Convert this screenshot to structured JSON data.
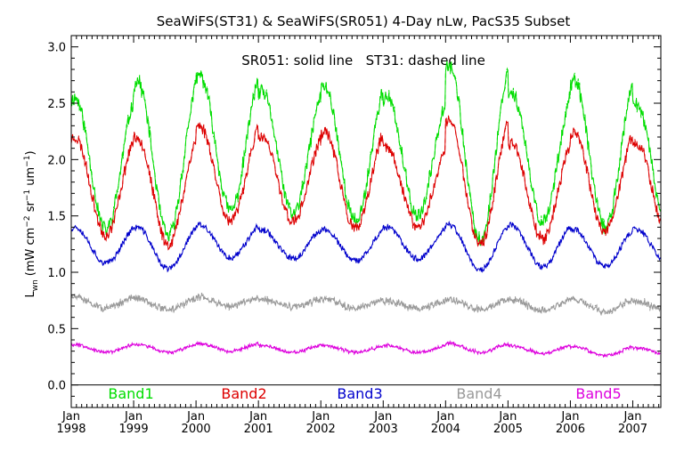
{
  "chart_data": {
    "type": "line",
    "title": "SeaWiFS(ST31) & SeaWiFS(SR051) 4-Day nLw, PacS35 Subset",
    "annotation": "SR051: solid line   ST31: dashed line",
    "ylabel": "L_wn (mW cm^-2 sr^-1 um^-1)",
    "ylabel_parts": {
      "main": "L",
      "sub": "wn",
      "unit_a": "(mW cm",
      "exp_a": "−2",
      "unit_b": " sr",
      "exp_b": "−1",
      "unit_c": " um",
      "exp_c": "−1",
      "close": ")"
    },
    "xlim": [
      1998.0,
      2007.45
    ],
    "ylim": [
      -0.2,
      3.1
    ],
    "x_ticks": [
      {
        "value": 1998,
        "month": "Jan",
        "year": "1998"
      },
      {
        "value": 1999,
        "month": "Jan",
        "year": "1999"
      },
      {
        "value": 2000,
        "month": "Jan",
        "year": "2000"
      },
      {
        "value": 2001,
        "month": "Jan",
        "year": "2001"
      },
      {
        "value": 2002,
        "month": "Jan",
        "year": "2002"
      },
      {
        "value": 2003,
        "month": "Jan",
        "year": "2003"
      },
      {
        "value": 2004,
        "month": "Jan",
        "year": "2004"
      },
      {
        "value": 2005,
        "month": "Jan",
        "year": "2005"
      },
      {
        "value": 2006,
        "month": "Jan",
        "year": "2006"
      },
      {
        "value": 2007,
        "month": "Jan",
        "year": "2007"
      }
    ],
    "y_ticks": [
      "0.0",
      "0.5",
      "1.0",
      "1.5",
      "2.0",
      "2.5",
      "3.0"
    ],
    "series": [
      {
        "name": "Band1",
        "color": "#00dd00",
        "base": 1.95,
        "amplitude": 0.58,
        "peaks": [
          2.55,
          2.7,
          2.75,
          2.6,
          2.65,
          2.55,
          2.85,
          2.6,
          2.7,
          2.5
        ],
        "troughs": [
          1.38,
          1.32,
          1.55,
          1.52,
          1.45,
          1.5,
          1.28,
          1.45,
          1.4,
          1.4
        ],
        "noise": 0.06,
        "seed": 11,
        "dashed_offset": 0.03
      },
      {
        "name": "Band2",
        "color": "#dd0000",
        "base": 1.78,
        "amplitude": 0.42,
        "peaks": [
          2.2,
          2.2,
          2.3,
          2.2,
          2.25,
          2.1,
          2.35,
          2.15,
          2.25,
          2.15
        ],
        "troughs": [
          1.33,
          1.25,
          1.45,
          1.45,
          1.38,
          1.4,
          1.25,
          1.3,
          1.35,
          1.35
        ],
        "noise": 0.05,
        "seed": 23,
        "dashed_offset": 0.02
      },
      {
        "name": "Band3",
        "color": "#0000cc",
        "base": 1.22,
        "amplitude": 0.17,
        "peaks": [
          1.4,
          1.4,
          1.42,
          1.38,
          1.38,
          1.4,
          1.42,
          1.42,
          1.38,
          1.38
        ],
        "troughs": [
          1.08,
          1.03,
          1.13,
          1.12,
          1.1,
          1.12,
          1.02,
          1.05,
          1.05,
          1.08
        ],
        "noise": 0.025,
        "seed": 37,
        "dashed_offset": 0.01
      },
      {
        "name": "Band4",
        "color": "#999999",
        "base": 0.72,
        "amplitude": 0.03,
        "peaks": [
          0.78,
          0.77,
          0.78,
          0.76,
          0.76,
          0.75,
          0.76,
          0.76,
          0.76,
          0.74
        ],
        "troughs": [
          0.68,
          0.67,
          0.7,
          0.69,
          0.68,
          0.68,
          0.67,
          0.66,
          0.65,
          0.66
        ],
        "noise": 0.025,
        "seed": 51,
        "dashed_offset": 0.02
      },
      {
        "name": "Band5",
        "color": "#dd00dd",
        "base": 0.32,
        "amplitude": 0.03,
        "peaks": [
          0.36,
          0.36,
          0.37,
          0.35,
          0.35,
          0.35,
          0.37,
          0.35,
          0.34,
          0.33
        ],
        "troughs": [
          0.29,
          0.29,
          0.3,
          0.29,
          0.29,
          0.29,
          0.29,
          0.28,
          0.26,
          0.27
        ],
        "noise": 0.012,
        "seed": 67,
        "dashed_offset": 0.01
      }
    ],
    "legend_placement": "bottom-inside"
  }
}
